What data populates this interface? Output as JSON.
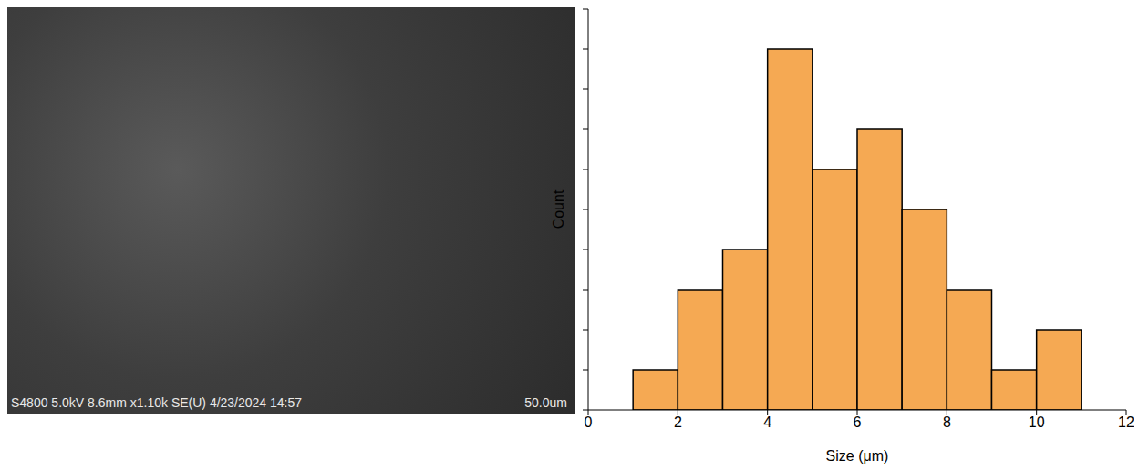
{
  "micrograph": {
    "info": "S4800 5.0kV 8.6mm x1.10k SE(U) 4/23/2024 14:57",
    "scale_bar": "50.0um"
  },
  "chart_data": {
    "type": "histogram",
    "bins": [
      1,
      2,
      3,
      4,
      5,
      6,
      7,
      8,
      9,
      10,
      11
    ],
    "values": [
      1,
      3,
      4,
      9,
      6,
      7,
      5,
      3,
      1,
      2
    ],
    "color": "#f5a953",
    "x_label": "Size (μm)",
    "y_label": "Count",
    "xlim": [
      0,
      12
    ],
    "xticks": [
      0,
      2,
      4,
      6,
      8,
      10,
      12
    ],
    "ylim": [
      0,
      10
    ],
    "yticks": [
      0,
      1,
      2,
      3,
      4,
      5,
      6,
      7,
      8,
      9,
      10
    ],
    "tick_labels": "x",
    "grid": false
  }
}
